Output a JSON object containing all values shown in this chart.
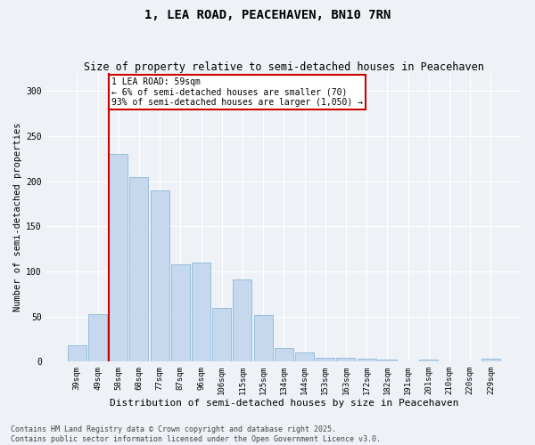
{
  "title": "1, LEA ROAD, PEACEHAVEN, BN10 7RN",
  "subtitle": "Size of property relative to semi-detached houses in Peacehaven",
  "xlabel": "Distribution of semi-detached houses by size in Peacehaven",
  "ylabel": "Number of semi-detached properties",
  "categories": [
    "39sqm",
    "49sqm",
    "58sqm",
    "68sqm",
    "77sqm",
    "87sqm",
    "96sqm",
    "106sqm",
    "115sqm",
    "125sqm",
    "134sqm",
    "144sqm",
    "153sqm",
    "163sqm",
    "172sqm",
    "182sqm",
    "191sqm",
    "201sqm",
    "210sqm",
    "220sqm",
    "229sqm"
  ],
  "values": [
    18,
    53,
    230,
    205,
    190,
    108,
    110,
    59,
    91,
    52,
    15,
    10,
    4,
    4,
    3,
    2,
    0,
    2,
    0,
    0,
    3
  ],
  "bar_color": "#c5d8ed",
  "bar_edge_color": "#7bafd4",
  "red_line_x": 2,
  "property_size": "59sqm",
  "property_name": "1 LEA ROAD",
  "pct_smaller": 6,
  "count_smaller": 70,
  "pct_larger": 93,
  "count_larger": 1050,
  "annotation_box_color": "#ffffff",
  "annotation_border_color": "#cc0000",
  "ylim": [
    0,
    320
  ],
  "yticks": [
    0,
    50,
    100,
    150,
    200,
    250,
    300
  ],
  "footer_line1": "Contains HM Land Registry data © Crown copyright and database right 2025.",
  "footer_line2": "Contains public sector information licensed under the Open Government Licence v3.0.",
  "bg_color": "#eef2f7",
  "grid_color": "#ffffff",
  "title_fontsize": 10,
  "subtitle_fontsize": 8.5,
  "axis_label_fontsize": 7.5,
  "tick_fontsize": 6.5,
  "footer_fontsize": 6.0,
  "annotation_fontsize": 7.0
}
